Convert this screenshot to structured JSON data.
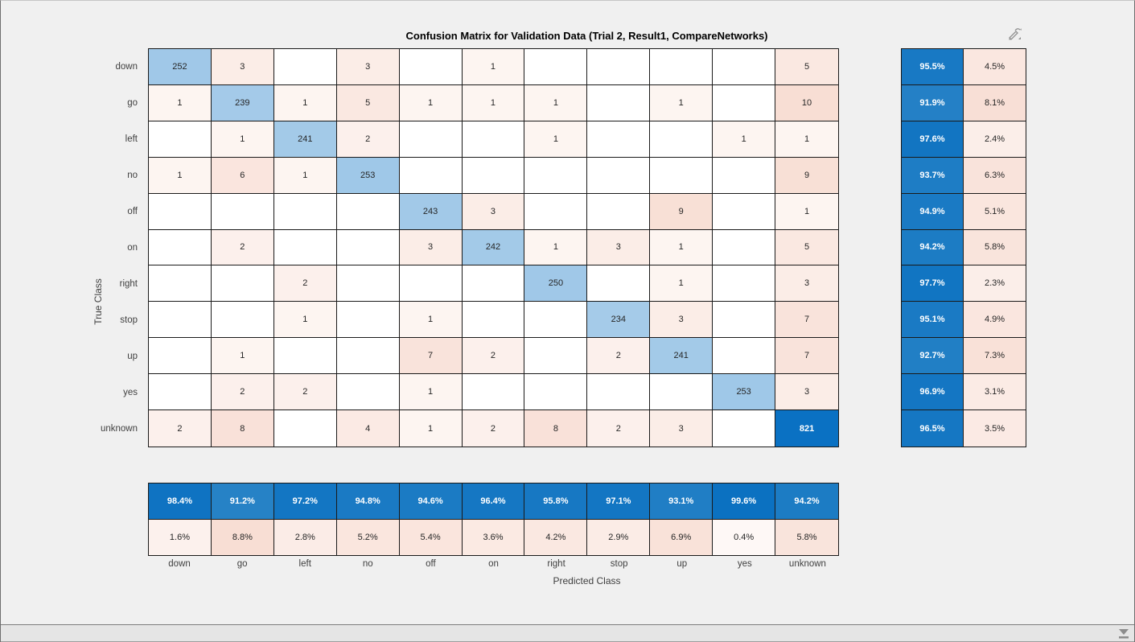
{
  "title": "Confusion Matrix for Validation Data (Trial 2, Result1, CompareNetworks)",
  "axes": {
    "x_label": "Predicted Class",
    "y_label": "True Class"
  },
  "chart_data": {
    "type": "heatmap",
    "subtype": "confusion-matrix-with-summaries",
    "classes": [
      "down",
      "go",
      "left",
      "no",
      "off",
      "on",
      "right",
      "stop",
      "up",
      "yes",
      "unknown"
    ],
    "matrix": [
      [
        252,
        3,
        0,
        3,
        0,
        1,
        0,
        0,
        0,
        0,
        5
      ],
      [
        1,
        239,
        1,
        5,
        1,
        1,
        1,
        0,
        1,
        0,
        10
      ],
      [
        0,
        1,
        241,
        2,
        0,
        0,
        1,
        0,
        0,
        1,
        1
      ],
      [
        1,
        6,
        1,
        253,
        0,
        0,
        0,
        0,
        0,
        0,
        9
      ],
      [
        0,
        0,
        0,
        0,
        243,
        3,
        0,
        0,
        9,
        0,
        1
      ],
      [
        0,
        2,
        0,
        0,
        3,
        242,
        1,
        3,
        1,
        0,
        5
      ],
      [
        0,
        0,
        2,
        0,
        0,
        0,
        250,
        0,
        1,
        0,
        3
      ],
      [
        0,
        0,
        1,
        0,
        1,
        0,
        0,
        234,
        3,
        0,
        7
      ],
      [
        0,
        1,
        0,
        0,
        7,
        2,
        0,
        2,
        241,
        0,
        7
      ],
      [
        0,
        2,
        2,
        0,
        1,
        0,
        0,
        0,
        0,
        253,
        3
      ],
      [
        2,
        8,
        0,
        4,
        1,
        2,
        8,
        2,
        3,
        0,
        821
      ]
    ],
    "row_summary": {
      "correct_pct": [
        95.5,
        91.9,
        97.6,
        93.7,
        94.9,
        94.2,
        97.7,
        95.1,
        92.7,
        96.9,
        96.5
      ],
      "incorrect_pct": [
        4.5,
        8.1,
        2.4,
        6.3,
        5.1,
        5.8,
        2.3,
        4.9,
        7.3,
        3.1,
        3.5
      ]
    },
    "col_summary": {
      "correct_pct": [
        98.4,
        91.2,
        97.2,
        94.8,
        94.6,
        96.4,
        95.8,
        97.1,
        93.1,
        99.6,
        94.2
      ],
      "incorrect_pct": [
        1.6,
        8.8,
        2.8,
        5.2,
        5.4,
        3.6,
        4.2,
        2.9,
        6.9,
        0.4,
        5.8
      ]
    },
    "max_diagonal": 821,
    "max_offdiagonal": 10,
    "colors": {
      "diagonal_blue": "#0a71c3",
      "offdiagonal_pink_base": "#f8ded4",
      "summary_blue_light": "#3088c8",
      "summary_blue_dark": "#0a70c1",
      "cell_border": "#1a1a1a",
      "figure_background": "#f0f0f0",
      "text_dark": "#262626",
      "text_light": "#ffffff"
    },
    "legend": "none",
    "grid": "cell borders on"
  },
  "icons": {
    "edit": "edit-plot-icon",
    "collapse": "collapse-panel-icon"
  }
}
